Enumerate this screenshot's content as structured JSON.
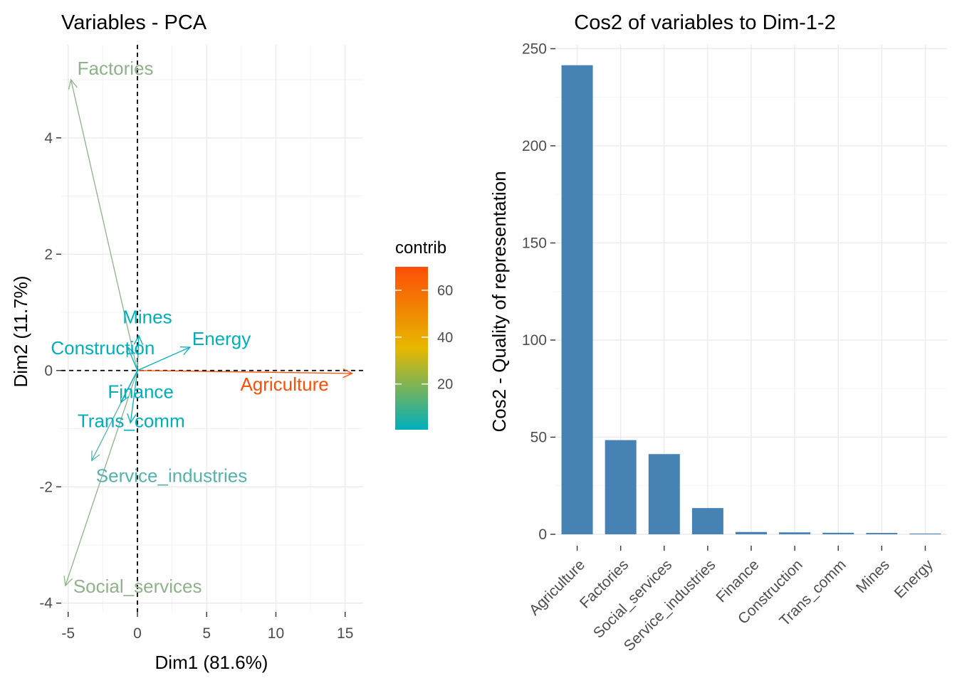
{
  "chart_data": [
    {
      "type": "scatter",
      "subtype": "pca-variable-arrows",
      "title": "Variables - PCA",
      "xlabel": "Dim1 (81.6%)",
      "ylabel": "Dim2 (11.7%)",
      "xlim": [
        -5.5,
        16.3
      ],
      "ylim": [
        -4.15,
        5.6
      ],
      "xticks": [
        -5,
        0,
        5,
        10,
        15
      ],
      "yticks": [
        -4,
        -2,
        0,
        2,
        4
      ],
      "grid": true,
      "reference_lines": {
        "x": 0,
        "y": 0,
        "style": "dashed"
      },
      "color_scale": {
        "name": "contrib",
        "min": 0.5,
        "max": 70,
        "ticks": [
          20,
          40,
          60
        ],
        "stops": [
          "#00AFBB",
          "#E7B800",
          "#FC4E07"
        ]
      },
      "variables": [
        {
          "name": "Agriculture",
          "x": 15.5,
          "y": -0.05,
          "contrib": 70,
          "color": "#FC4E07"
        },
        {
          "name": "Factories",
          "x": -4.8,
          "y": 5.0,
          "contrib": 14,
          "color": "#8FB28A"
        },
        {
          "name": "Social_services",
          "x": -5.2,
          "y": -3.7,
          "contrib": 12.5,
          "color": "#8FB28A"
        },
        {
          "name": "Service_industries",
          "x": -3.3,
          "y": -1.55,
          "contrib": 4.5,
          "color": "#55B3AE"
        },
        {
          "name": "Energy",
          "x": 3.8,
          "y": 0.4,
          "contrib": 0.5,
          "color": "#00AFBB"
        },
        {
          "name": "Mines",
          "x": 0.1,
          "y": 0.6,
          "contrib": 0.5,
          "color": "#00AFBB"
        },
        {
          "name": "Construction",
          "x": -0.7,
          "y": 0.4,
          "contrib": 0.5,
          "color": "#00AFBB"
        },
        {
          "name": "Trans_comm",
          "x": -0.5,
          "y": -0.9,
          "contrib": 0.5,
          "color": "#00AFBB"
        },
        {
          "name": "Finance",
          "x": -1.2,
          "y": -0.55,
          "contrib": 0.5,
          "color": "#00AFBB"
        }
      ]
    },
    {
      "type": "bar",
      "title": "Cos2 of variables to Dim-1-2",
      "xlabel": "",
      "ylabel": "Cos2 - Quality of representation",
      "ylim": [
        0,
        252
      ],
      "yticks": [
        0,
        50,
        100,
        150,
        200,
        250
      ],
      "grid": true,
      "bar_color": "#4682B4",
      "categories": [
        "Agriculture",
        "Factories",
        "Social_services",
        "Service_industries",
        "Finance",
        "Construction",
        "Trans_comm",
        "Mines",
        "Energy"
      ],
      "values": [
        241.5,
        48.5,
        41.3,
        13.5,
        1.2,
        1.0,
        0.8,
        0.7,
        0.4
      ]
    }
  ]
}
